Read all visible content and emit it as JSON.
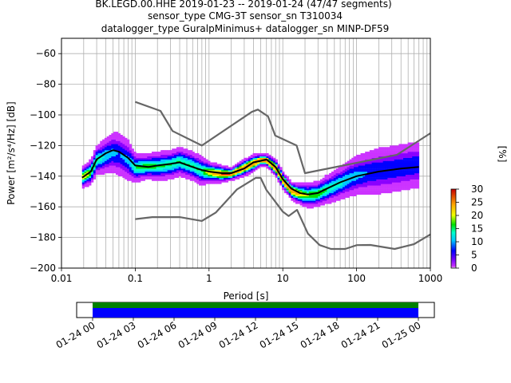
{
  "chart_data": {
    "type": "heatmap",
    "title_lines": [
      "BK.LEGD.00.HHE   2019-01-23 -- 2019-01-24  (47/47 segments)",
      "sensor_type CMG-3T sensor_sn T310034",
      "datalogger_type GuralpMinimus+ datalogger_sn MINP-DF59"
    ],
    "xlabel": "Period [s]",
    "ylabel": "Power [m²/s⁴/Hz] [dB]",
    "xscale": "log",
    "xlim": [
      0.01,
      1000
    ],
    "ylim": [
      -200,
      -50
    ],
    "grid": true,
    "x_ticks": [
      0.01,
      0.1,
      1,
      10,
      100,
      1000
    ],
    "x_tick_labels": [
      "0.01",
      "0.1",
      "1",
      "10",
      "100",
      "1000"
    ],
    "y_ticks": [
      -200,
      -180,
      -160,
      -140,
      -120,
      -100,
      -80,
      -60
    ],
    "y_tick_labels": [
      "−200",
      "−180",
      "−160",
      "−140",
      "−120",
      "−100",
      "−80",
      "−60"
    ],
    "colorbar": {
      "label": "[%]",
      "range": [
        0,
        30
      ],
      "ticks": [
        0,
        5,
        10,
        15,
        20,
        25,
        30
      ],
      "tick_labels": [
        "0",
        "5",
        "10",
        "15",
        "20",
        "25",
        "30"
      ]
    },
    "density_spread": [
      [
        0.019,
        -141,
        5
      ],
      [
        0.025,
        -138,
        6
      ],
      [
        0.03,
        -130,
        7
      ],
      [
        0.04,
        -127,
        9
      ],
      [
        0.05,
        -125,
        10
      ],
      [
        0.06,
        -126,
        11
      ],
      [
        0.08,
        -130,
        10
      ],
      [
        0.1,
        -135,
        7
      ],
      [
        0.15,
        -134,
        6
      ],
      [
        0.2,
        -134,
        7
      ],
      [
        0.3,
        -133,
        7
      ],
      [
        0.4,
        -131,
        7
      ],
      [
        0.6,
        -134,
        7
      ],
      [
        0.8,
        -137,
        7
      ],
      [
        1,
        -138,
        5
      ],
      [
        1.5,
        -139,
        4
      ],
      [
        2,
        -139,
        3
      ],
      [
        3,
        -135,
        4
      ],
      [
        4,
        -132,
        4
      ],
      [
        5,
        -130,
        3
      ],
      [
        6,
        -130,
        3
      ],
      [
        8,
        -135,
        4
      ],
      [
        10,
        -143,
        4
      ],
      [
        13,
        -150,
        4
      ],
      [
        17,
        -152,
        5
      ],
      [
        22,
        -153,
        6
      ],
      [
        30,
        -152,
        6
      ],
      [
        40,
        -149,
        7
      ],
      [
        60,
        -145,
        8
      ],
      [
        80,
        -142,
        9
      ],
      [
        100,
        -140,
        10
      ],
      [
        150,
        -138,
        11
      ],
      [
        200,
        -137,
        12
      ],
      [
        300,
        -136,
        12
      ],
      [
        500,
        -134,
        12
      ],
      [
        700,
        -133,
        12
      ]
    ],
    "series": [
      {
        "role": "mean",
        "color": "#000000",
        "points": [
          [
            0.019,
            -141
          ],
          [
            0.025,
            -137
          ],
          [
            0.03,
            -129
          ],
          [
            0.04,
            -125
          ],
          [
            0.05,
            -123
          ],
          [
            0.06,
            -124
          ],
          [
            0.08,
            -128
          ],
          [
            0.1,
            -133
          ],
          [
            0.15,
            -134
          ],
          [
            0.2,
            -133
          ],
          [
            0.3,
            -132
          ],
          [
            0.4,
            -131
          ],
          [
            0.6,
            -134
          ],
          [
            0.8,
            -136
          ],
          [
            1,
            -137
          ],
          [
            1.5,
            -138
          ],
          [
            2,
            -138
          ],
          [
            3,
            -135
          ],
          [
            4,
            -131
          ],
          [
            5,
            -130
          ],
          [
            6,
            -129
          ],
          [
            8,
            -134
          ],
          [
            10,
            -142
          ],
          [
            13,
            -148
          ],
          [
            17,
            -151
          ],
          [
            22,
            -152
          ],
          [
            30,
            -151
          ],
          [
            40,
            -148
          ],
          [
            60,
            -144
          ],
          [
            100,
            -140
          ],
          [
            200,
            -137
          ],
          [
            400,
            -135
          ],
          [
            700,
            -134
          ]
        ]
      },
      {
        "role": "noise-model-high",
        "color": "#666666",
        "points": [
          [
            0.1,
            -91.5
          ],
          [
            0.22,
            -97.4
          ],
          [
            0.32,
            -110.5
          ],
          [
            0.8,
            -120
          ],
          [
            3.8,
            -98
          ],
          [
            4.6,
            -96.5
          ],
          [
            6.3,
            -101
          ],
          [
            7.9,
            -113.5
          ],
          [
            15.4,
            -120
          ],
          [
            20,
            -138
          ],
          [
            354,
            -126
          ],
          [
            1000,
            -112
          ]
        ]
      },
      {
        "role": "noise-model-low",
        "color": "#666666",
        "points": [
          [
            0.1,
            -168
          ],
          [
            0.17,
            -166.7
          ],
          [
            0.4,
            -166.7
          ],
          [
            0.8,
            -169.2
          ],
          [
            1.24,
            -163.7
          ],
          [
            2.4,
            -148.6
          ],
          [
            4.3,
            -141.1
          ],
          [
            5,
            -141.1
          ],
          [
            6,
            -149
          ],
          [
            10,
            -163.2
          ],
          [
            12,
            -166
          ],
          [
            15.6,
            -162
          ],
          [
            21.9,
            -177.5
          ],
          [
            31.6,
            -185
          ],
          [
            45,
            -187.5
          ],
          [
            70,
            -187.5
          ],
          [
            101,
            -185
          ],
          [
            154,
            -184.9
          ],
          [
            328,
            -187.5
          ],
          [
            600,
            -184.4
          ],
          [
            1000,
            -178
          ]
        ]
      }
    ]
  },
  "timeline": {
    "tick_labels": [
      "01-24 00",
      "01-24 03",
      "01-24 06",
      "01-24 09",
      "01-24 12",
      "01-24 15",
      "01-24 18",
      "01-24 21",
      "01-25 00"
    ],
    "colors": {
      "top": "#008000",
      "bottom": "#0000ff"
    }
  }
}
